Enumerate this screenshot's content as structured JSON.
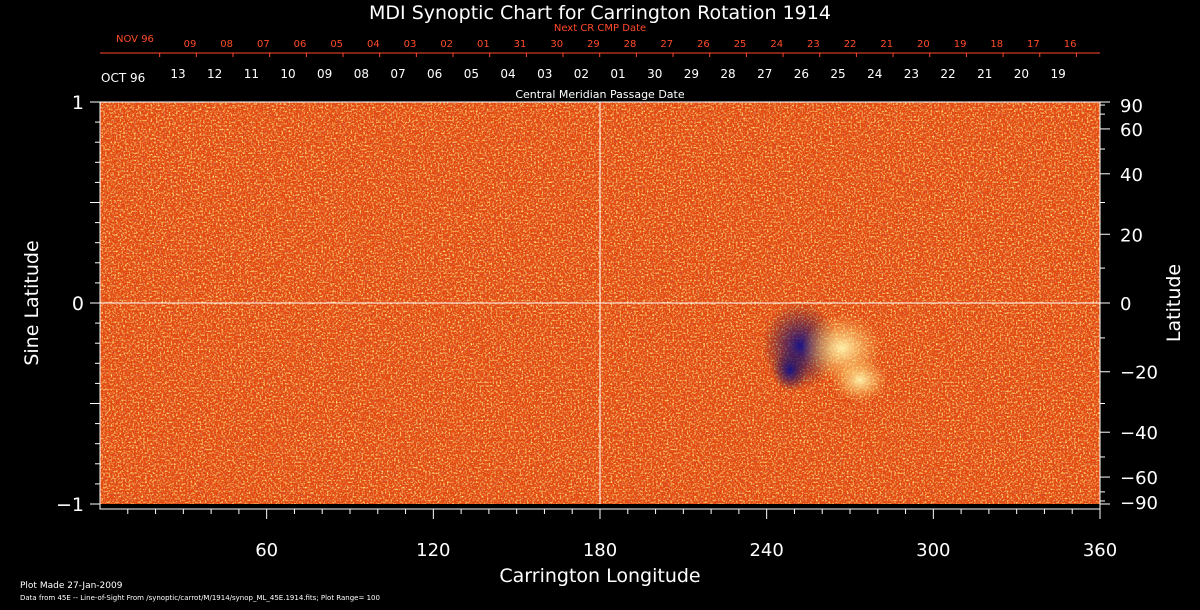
{
  "colors": {
    "background": "#000000",
    "axis": "#ffffff",
    "top_axis": "#ff4a2a",
    "map_base": "#e34a12"
  },
  "chart_data": {
    "type": "heatmap",
    "title": "MDI Synoptic Chart for Carrington Rotation 1914",
    "xlabel": "Carrington Longitude",
    "ylabel_left": "Sine Latitude",
    "ylabel_right": "Latitude",
    "xlim": [
      0,
      360
    ],
    "ylim": [
      -1,
      1
    ],
    "x_ticks": [
      "60",
      "120",
      "180",
      "240",
      "300",
      "360"
    ],
    "y_left_ticks": [
      "1",
      "0",
      "−1"
    ],
    "y_right_ticks": [
      "90",
      "60",
      "40",
      "20",
      "0",
      "−20",
      "−40",
      "−60",
      "−90"
    ],
    "y_right_values": [
      90,
      60,
      40,
      20,
      0,
      -20,
      -40,
      -60,
      -90
    ],
    "cmp_axis_title": "Central Meridian Passage Date",
    "cmp_start_label": "OCT 96",
    "cmp_dates": [
      "13",
      "12",
      "11",
      "10",
      "09",
      "08",
      "07",
      "06",
      "05",
      "04",
      "03",
      "02",
      "01",
      "30",
      "29",
      "28",
      "27",
      "26",
      "25",
      "24",
      "23",
      "22",
      "21",
      "20",
      "19"
    ],
    "next_axis_title": "Next CR CMP Date",
    "next_start_label": "NOV 96",
    "next_dates": [
      "09",
      "08",
      "07",
      "06",
      "05",
      "04",
      "03",
      "02",
      "01",
      "31",
      "30",
      "29",
      "28",
      "27",
      "26",
      "25",
      "24",
      "23",
      "22",
      "21",
      "20",
      "19",
      "18",
      "17",
      "16"
    ],
    "active_region": {
      "longitude_center": 255,
      "sine_latitude_center": -0.2,
      "polarity": "mixed"
    },
    "colormap": "red-orange base, dark blue negative, pale yellow positive",
    "grid": "crosshair at longitude 180 and sine latitude 0"
  },
  "footer": {
    "plot_made": "Plot Made 27-Jan-2009",
    "data_source": "Data from 45E -- Line-of-Sight From /synoptic/carrot/M/1914/synop_ML_45E.1914.fits; Plot Range= 100"
  }
}
